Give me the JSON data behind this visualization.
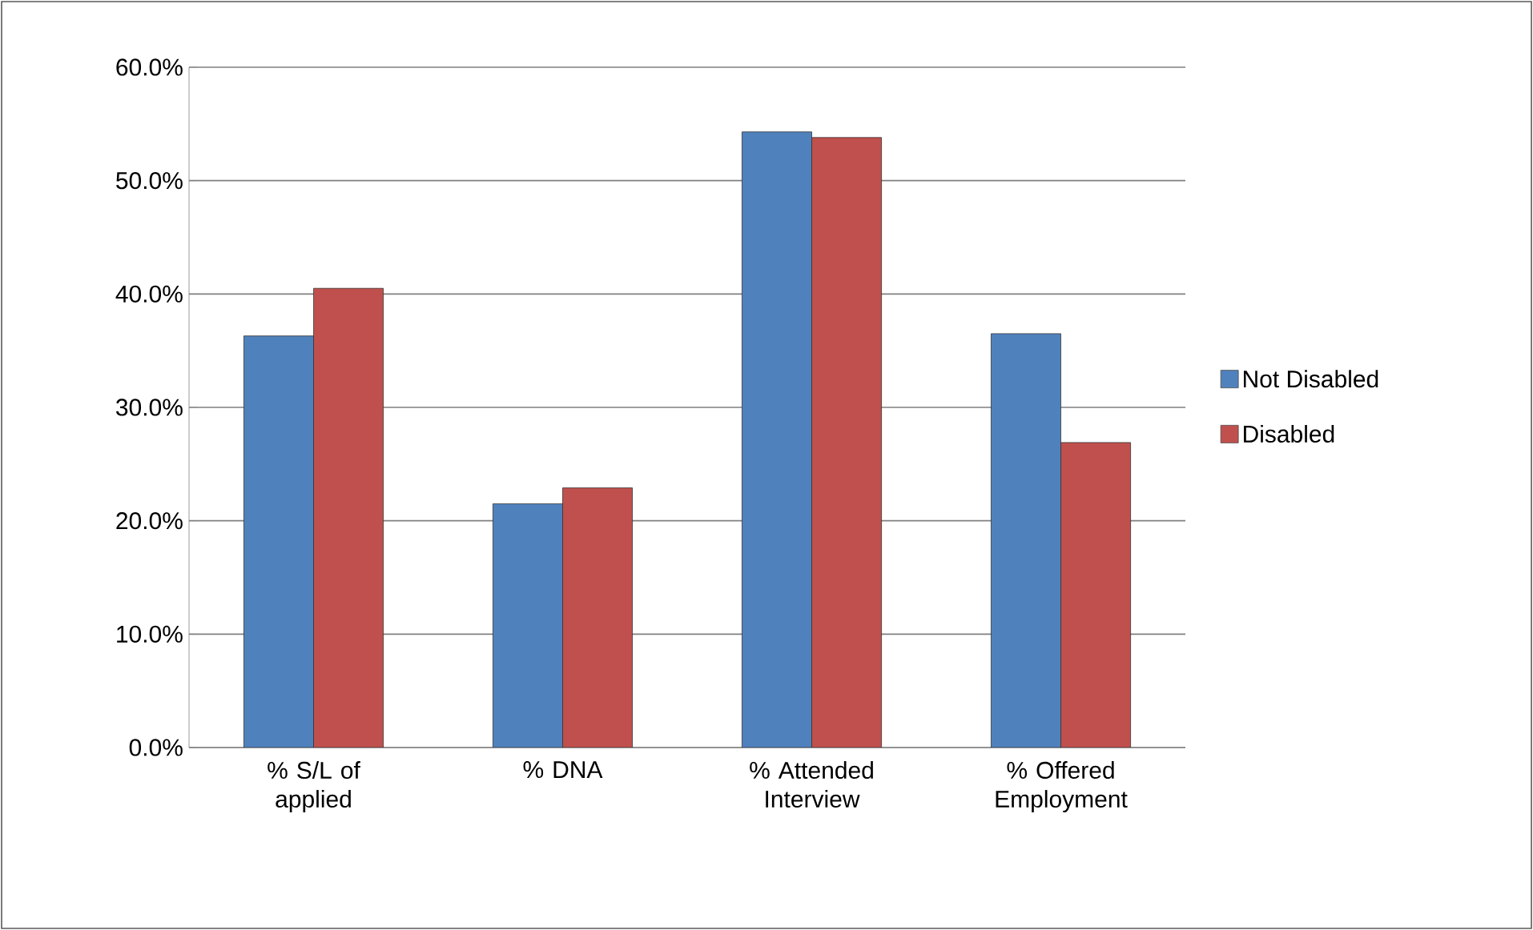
{
  "chart_data": {
    "type": "bar",
    "categories": [
      "% S/L of applied",
      "% DNA",
      "% Attended Interview",
      "% Offered Employment"
    ],
    "series": [
      {
        "name": "Not Disabled",
        "color": "#4f81bd",
        "values": [
          36.3,
          21.5,
          54.3,
          36.5
        ]
      },
      {
        "name": "Disabled",
        "color": "#c0504d",
        "values": [
          40.5,
          22.9,
          53.8,
          26.9
        ]
      }
    ],
    "ylim": [
      0,
      60
    ],
    "yticks": [
      {
        "value": 0,
        "label": "0.0%"
      },
      {
        "value": 10,
        "label": "10.0%"
      },
      {
        "value": 20,
        "label": "20.0%"
      },
      {
        "value": 30,
        "label": "30.0%"
      },
      {
        "value": 40,
        "label": "40.0%"
      },
      {
        "value": 50,
        "label": "50.0%"
      },
      {
        "value": 60,
        "label": "60.0%"
      }
    ],
    "grid": "y",
    "legend": "right"
  }
}
